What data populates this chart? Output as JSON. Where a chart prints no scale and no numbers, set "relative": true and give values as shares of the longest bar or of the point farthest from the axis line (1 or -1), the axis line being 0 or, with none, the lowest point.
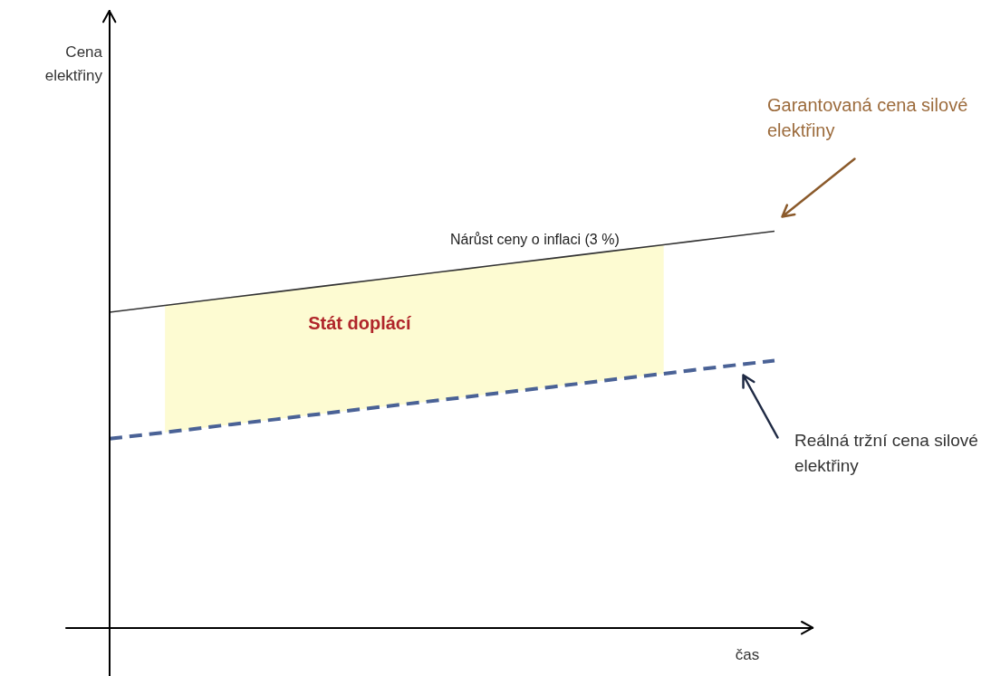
{
  "chart_data": {
    "type": "line",
    "relative": true,
    "tick_labels": false,
    "xlabel": "čas",
    "annotations": [
      "Nárůst ceny o inflaci (3 %)",
      "Stát doplácí",
      "Cena elektřiny"
    ],
    "categories": [
      null,
      null,
      null,
      null,
      null,
      null,
      null,
      null,
      null,
      null,
      null,
      null,
      null
    ],
    "series": [
      {
        "name": "Garantovaná cena silové elektřiny",
        "color": "#333333",
        "line_style": "solid",
        "values": [
          0.796,
          0.813,
          0.83,
          0.847,
          0.864,
          0.881,
          0.898,
          0.915,
          0.932,
          0.949,
          0.966,
          0.983,
          1.0
        ],
        "lower": [
          null,
          0.493,
          0.51,
          0.526,
          0.543,
          0.559,
          0.575,
          0.592,
          0.608,
          0.625,
          0.641,
          null,
          null
        ],
        "upper": [
          null,
          0.813,
          0.83,
          0.847,
          0.864,
          0.881,
          0.898,
          0.915,
          0.932,
          0.949,
          0.966,
          null,
          null
        ]
      },
      {
        "name": "Reálná tržní cena silové elektřiny",
        "color": "#4a6296",
        "line_style": "dashed",
        "values": [
          0.477,
          0.493,
          0.51,
          0.526,
          0.543,
          0.559,
          0.575,
          0.592,
          0.608,
          0.625,
          0.641,
          0.658,
          0.674
        ]
      }
    ]
  }
}
